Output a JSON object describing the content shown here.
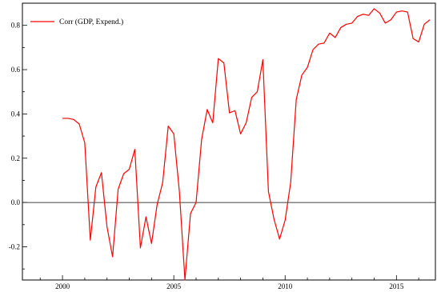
{
  "chart_data": {
    "type": "line",
    "series": [
      {
        "name": "Corr (GDP, Expend.)",
        "color": "#ff0000",
        "x": [
          2000.0,
          2000.25,
          2000.5,
          2000.75,
          2001.0,
          2001.25,
          2001.5,
          2001.75,
          2002.0,
          2002.25,
          2002.5,
          2002.75,
          2003.0,
          2003.25,
          2003.5,
          2003.75,
          2004.0,
          2004.25,
          2004.5,
          2004.75,
          2005.0,
          2005.25,
          2005.5,
          2005.75,
          2006.0,
          2006.25,
          2006.5,
          2006.75,
          2007.0,
          2007.25,
          2007.5,
          2007.75,
          2008.0,
          2008.25,
          2008.5,
          2008.75,
          2009.0,
          2009.25,
          2009.5,
          2009.75,
          2010.0,
          2010.25,
          2010.5,
          2010.75,
          2011.0,
          2011.25,
          2011.5,
          2011.75,
          2012.0,
          2012.25,
          2012.5,
          2012.75,
          2013.0,
          2013.25,
          2013.5,
          2013.75,
          2014.0,
          2014.25,
          2014.5,
          2014.75,
          2015.0,
          2015.25,
          2015.5,
          2015.75,
          2016.0,
          2016.25,
          2016.5
        ],
        "values": [
          0.38,
          0.38,
          0.375,
          0.355,
          0.27,
          -0.17,
          0.07,
          0.135,
          -0.11,
          -0.245,
          0.06,
          0.13,
          0.15,
          0.24,
          -0.205,
          -0.065,
          -0.185,
          -0.01,
          0.09,
          0.345,
          0.31,
          0.05,
          -0.35,
          -0.05,
          0.0,
          0.285,
          0.42,
          0.36,
          0.65,
          0.63,
          0.405,
          0.415,
          0.31,
          0.36,
          0.475,
          0.5,
          0.645,
          0.05,
          -0.075,
          -0.165,
          -0.08,
          0.09,
          0.465,
          0.575,
          0.61,
          0.69,
          0.715,
          0.72,
          0.765,
          0.745,
          0.79,
          0.805,
          0.81,
          0.84,
          0.85,
          0.845,
          0.875,
          0.855,
          0.81,
          0.825,
          0.86,
          0.865,
          0.86,
          0.74,
          0.725,
          0.805,
          0.825
        ]
      }
    ],
    "xlim": [
      1998.2,
      2016.75
    ],
    "ylim": [
      -0.35,
      0.9
    ],
    "xticks": [
      2000,
      2005,
      2010,
      2015
    ],
    "yticks": [
      -0.2,
      0.0,
      0.2,
      0.4,
      0.6,
      0.8
    ],
    "xtick_labels": [
      "2000",
      "2005",
      "2010",
      "2015"
    ],
    "ytick_labels": [
      "-0.2",
      "0.0",
      "0.2",
      "0.4",
      "0.6",
      "0.8"
    ],
    "reference_line_y": 0.0,
    "grid": false,
    "legend": "top-left"
  }
}
